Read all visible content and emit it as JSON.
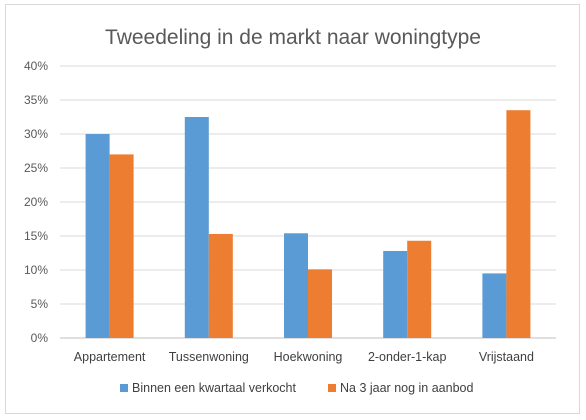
{
  "chart_data": {
    "type": "bar",
    "title": "Tweedeling in de markt naar woningtype",
    "xlabel": "",
    "ylabel": "",
    "categories": [
      "Appartement",
      "Tussenwoning",
      "Hoekwoning",
      "2-onder-1-kap",
      "Vrijstaand"
    ],
    "series": [
      {
        "name": "Binnen een kwartaal verkocht",
        "color": "#5B9BD5",
        "values": [
          30.0,
          32.5,
          15.4,
          12.8,
          9.5
        ]
      },
      {
        "name": "Na 3 jaar nog in aanbod",
        "color": "#ED7D31",
        "values": [
          27.0,
          15.3,
          10.1,
          14.3,
          33.5
        ]
      }
    ],
    "ylim": [
      0,
      40
    ],
    "yticks": [
      0,
      5,
      10,
      15,
      20,
      25,
      30,
      35,
      40
    ],
    "ytick_format": "percent",
    "grid": true,
    "legend_position": "bottom"
  }
}
